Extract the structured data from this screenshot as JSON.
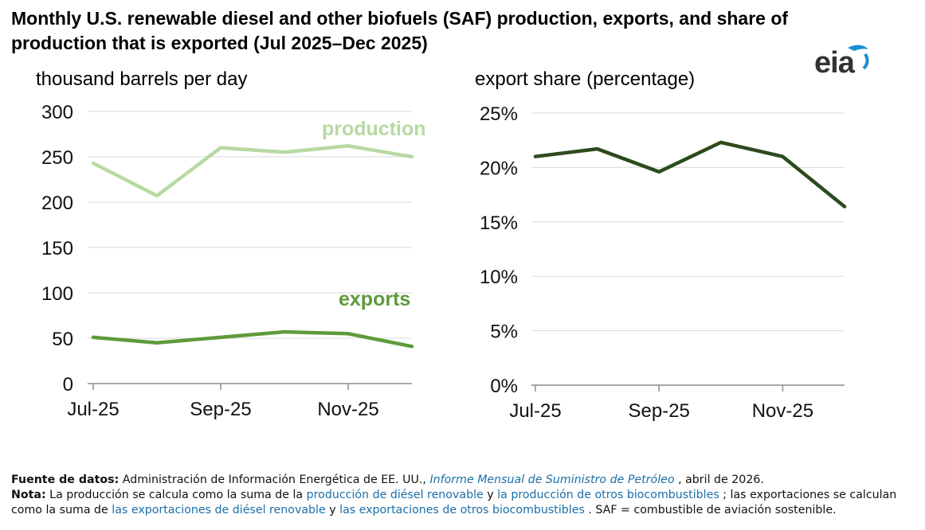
{
  "title": "Monthly U.S. renewable diesel and other biofuels (SAF) production, exports, and share of production that is exported (Jul 2025–Dec 2025)",
  "logo_text": "eia",
  "colors": {
    "production": "#b7d9a3",
    "exports": "#5e9a3b",
    "share": "#2d4a1d",
    "grid": "#d9d9d9",
    "axis": "#8c8c8c"
  },
  "chart_data": [
    {
      "type": "line",
      "ylabel": "thousand barrels per day",
      "x": [
        "Jul-25",
        "Aug-25",
        "Sep-25",
        "Oct-25",
        "Nov-25",
        "Dec-25"
      ],
      "xtick_labels": [
        "Jul-25",
        "",
        "Sep-25",
        "",
        "Nov-25",
        ""
      ],
      "ylim": [
        0,
        300
      ],
      "yticks": [
        "0",
        "50",
        "100",
        "150",
        "200",
        "250",
        "300"
      ],
      "grid": true,
      "series": [
        {
          "name": "production",
          "values": [
            243,
            207,
            260,
            255,
            262,
            250
          ]
        },
        {
          "name": "exports",
          "values": [
            51,
            45,
            51,
            57,
            55,
            41
          ]
        }
      ]
    },
    {
      "type": "line",
      "ylabel": "export share (percentage)",
      "x": [
        "Jul-25",
        "Aug-25",
        "Sep-25",
        "Oct-25",
        "Nov-25",
        "Dec-25"
      ],
      "xtick_labels": [
        "Jul-25",
        "",
        "Sep-25",
        "",
        "Nov-25",
        ""
      ],
      "ylim": [
        0,
        25
      ],
      "yticks": [
        "0%",
        "5%",
        "10%",
        "15%",
        "20%",
        "25%"
      ],
      "grid": true,
      "series": [
        {
          "values": [
            21.0,
            21.7,
            19.6,
            22.3,
            21.0,
            16.4
          ]
        }
      ]
    }
  ],
  "footer": {
    "source_label": "Fuente de datos:",
    "source_text": " Administración de Información Energética de EE. UU., ",
    "source_link": "Informe Mensual de Suministro de Petróleo",
    "source_end": " , abril de 2026.",
    "note_label": "Nota:",
    "note_1": " La producción se calcula como la suma de la ",
    "link_1": "producción de diésel renovable",
    "note_2": " y ",
    "link_2": "la producción de otros biocombustibles",
    "note_3": " ; las exportaciones se calculan como la suma de ",
    "link_3": "las exportaciones de diésel renovable",
    "note_4": " y ",
    "link_4": "las exportaciones de otros biocombustibles",
    "note_5": " . SAF = combustible de aviación sostenible."
  }
}
